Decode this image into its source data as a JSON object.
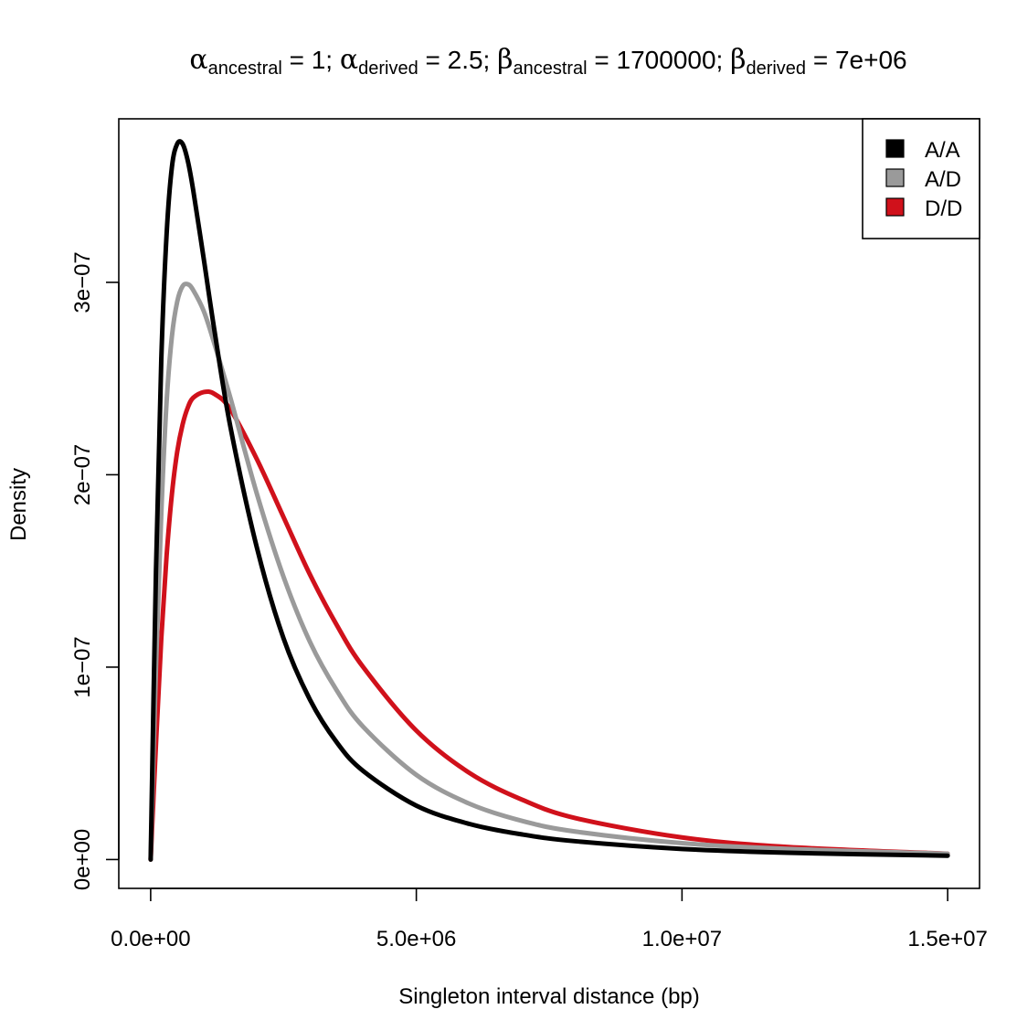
{
  "chart_data": {
    "type": "line",
    "title": {
      "alpha_symbol": "α",
      "beta_symbol": "β",
      "alpha_ancestral_sub": "ancestral",
      "alpha_ancestral_val": " = 1; ",
      "alpha_derived_sub": "derived",
      "alpha_derived_val": " = 2.5; ",
      "beta_ancestral_sub": "ancestral",
      "beta_ancestral_val": " = 1700000; ",
      "beta_derived_sub": "derived",
      "beta_derived_val": " = 7e+06"
    },
    "xlabel": "Singleton interval distance (bp)",
    "ylabel": "Density",
    "xlim": [
      -600000,
      15600000
    ],
    "ylim": [
      -1.5e-08,
      3.85e-07
    ],
    "x_ticks": [
      0,
      5000000,
      10000000,
      15000000
    ],
    "x_tick_labels": [
      "0.0e+00",
      "5.0e+06",
      "1.0e+07",
      "1.5e+07"
    ],
    "y_ticks": [
      0,
      1e-07,
      2e-07,
      3e-07
    ],
    "y_tick_labels": [
      "0e+00",
      "1e−07",
      "2e−07",
      "3e−07"
    ],
    "legend_position": "top-right",
    "series": [
      {
        "name": "A/A",
        "color": "#000000",
        "x": [
          0,
          100000,
          200000,
          300000,
          400000,
          500000,
          600000,
          700000,
          800000,
          1000000,
          1200000,
          1500000,
          2000000,
          2500000,
          3000000,
          3500000,
          4000000,
          5000000,
          6000000,
          7000000,
          8000000,
          10000000,
          12000000,
          15000000
        ],
        "y": [
          0,
          1.5e-07,
          2.6e-07,
          3.25e-07,
          3.6e-07,
          3.72e-07,
          3.72e-07,
          3.63e-07,
          3.48e-07,
          3.12e-07,
          2.75e-07,
          2.25e-07,
          1.62e-07,
          1.15e-07,
          8.3e-08,
          6.1e-08,
          4.6e-08,
          2.8e-08,
          1.85e-08,
          1.3e-08,
          9.5e-09,
          5.5e-09,
          3.5e-09,
          2e-09
        ]
      },
      {
        "name": "A/D",
        "color": "#9a9a9a",
        "x": [
          0,
          100000,
          200000,
          300000,
          400000,
          500000,
          600000,
          700000,
          800000,
          1000000,
          1200000,
          1500000,
          2000000,
          2500000,
          3000000,
          3500000,
          4000000,
          5000000,
          6000000,
          7000000,
          8000000,
          10000000,
          12000000,
          15000000
        ],
        "y": [
          0,
          1e-07,
          1.8e-07,
          2.38e-07,
          2.72e-07,
          2.9e-07,
          2.98e-07,
          2.99e-07,
          2.96e-07,
          2.85e-07,
          2.68e-07,
          2.4e-07,
          1.9e-07,
          1.47e-07,
          1.13e-07,
          8.8e-08,
          6.9e-08,
          4.4e-08,
          2.9e-08,
          2e-08,
          1.45e-08,
          8.5e-09,
          5.5e-09,
          3e-09
        ]
      },
      {
        "name": "D/D",
        "color": "#d0111b",
        "x": [
          0,
          100000,
          200000,
          300000,
          400000,
          500000,
          600000,
          700000,
          800000,
          1000000,
          1200000,
          1500000,
          2000000,
          2500000,
          3000000,
          3500000,
          4000000,
          5000000,
          6000000,
          7000000,
          8000000,
          10000000,
          12000000,
          15000000
        ],
        "y": [
          0,
          6e-08,
          1.15e-07,
          1.58e-07,
          1.9e-07,
          2.12e-07,
          2.26e-07,
          2.35e-07,
          2.4e-07,
          2.43e-07,
          2.42e-07,
          2.34e-07,
          2.08e-07,
          1.78e-07,
          1.48e-07,
          1.22e-07,
          1e-07,
          6.7e-08,
          4.5e-08,
          3.1e-08,
          2.15e-08,
          1.15e-08,
          6.5e-09,
          3e-09
        ]
      }
    ]
  }
}
